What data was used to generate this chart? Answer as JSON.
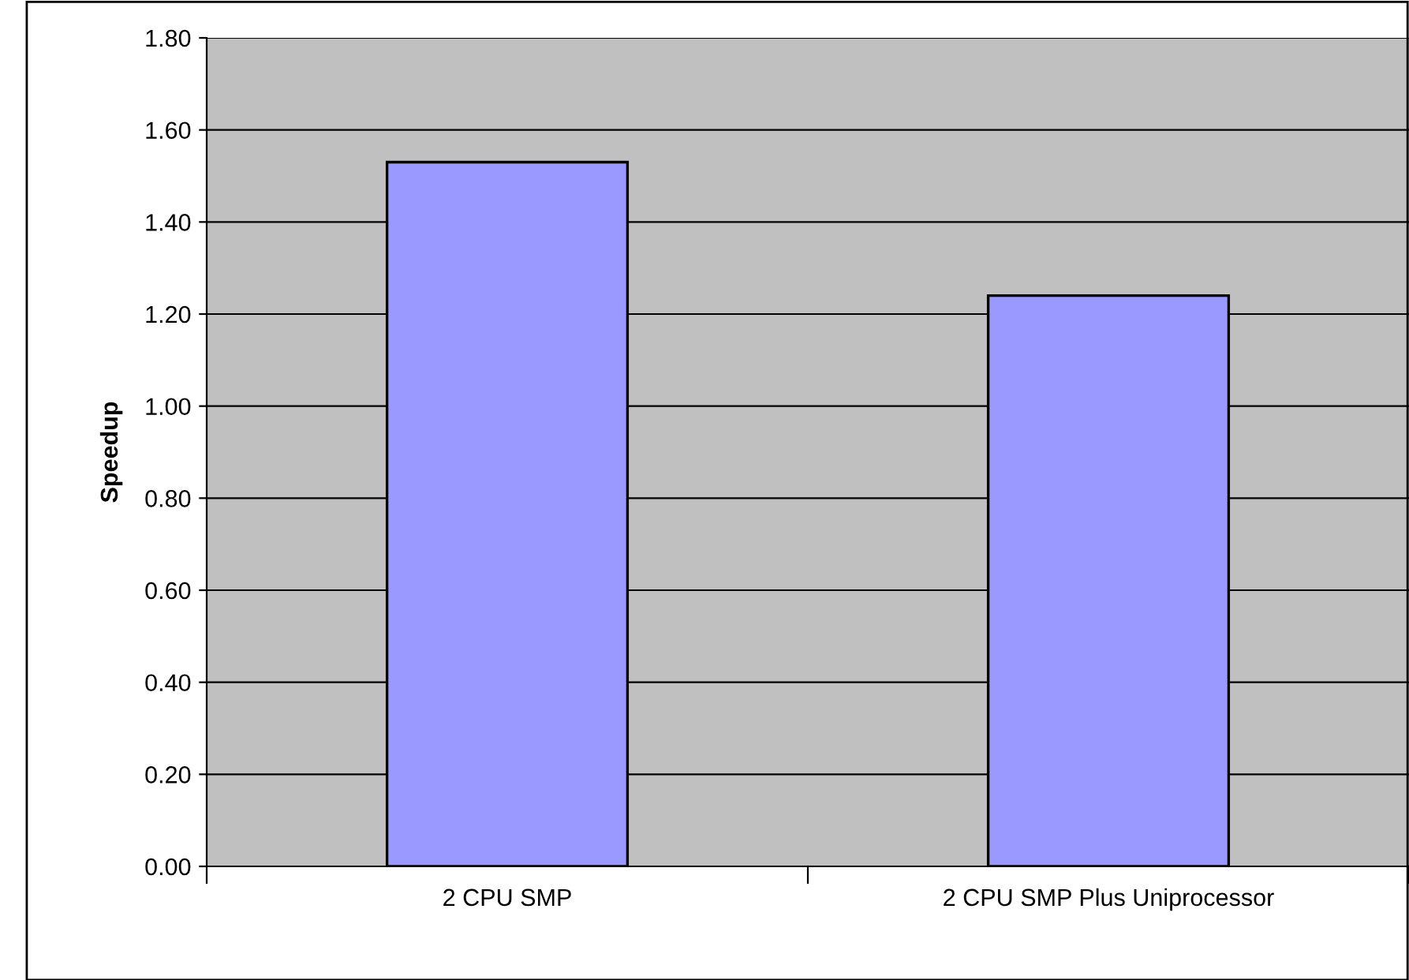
{
  "chart_data": {
    "type": "bar",
    "ylabel": "Speedup",
    "categories": [
      "2 CPU SMP",
      "2 CPU SMP Plus Uniprocessor"
    ],
    "values": [
      1.53,
      1.24
    ],
    "color": "#9999ff",
    "ylim": [
      0,
      1.8
    ],
    "yticks": [
      {
        "value": 0,
        "label": "0.00"
      },
      {
        "value": 0.2,
        "label": "0.20"
      },
      {
        "value": 0.4,
        "label": "0.40"
      },
      {
        "value": 0.6,
        "label": "0.60"
      },
      {
        "value": 0.8,
        "label": "0.80"
      },
      {
        "value": 1.0,
        "label": "1.00"
      },
      {
        "value": 1.2,
        "label": "1.20"
      },
      {
        "value": 1.4,
        "label": "1.40"
      },
      {
        "value": 1.6,
        "label": "1.60"
      },
      {
        "value": 1.8,
        "label": "1.80"
      }
    ],
    "grid": "y"
  }
}
